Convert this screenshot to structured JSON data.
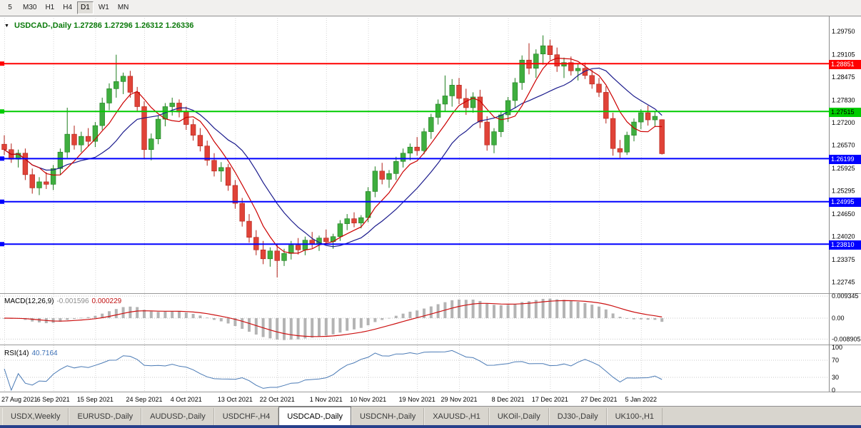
{
  "toolbar": {
    "timeframes": [
      "5",
      "M30",
      "H1",
      "H4",
      "D1",
      "W1",
      "MN"
    ],
    "active_timeframe": "D1"
  },
  "chart": {
    "dropdown_icon": "▼",
    "symbol_title": "USDCAD-,Daily",
    "ohlc_text": "1.27286 1.27296 1.26312 1.26336",
    "title_color": "#0b7a0b"
  },
  "price_axis": {
    "labels": [
      "1.29750",
      "1.29105",
      "1.28475",
      "1.27830",
      "1.27200",
      "1.26570",
      "1.25925",
      "1.25295",
      "1.24650",
      "1.24020",
      "1.23375",
      "1.22745"
    ]
  },
  "hlines": [
    {
      "price": 1.28851,
      "label": "1.28851",
      "color": "#ff0000",
      "text_color": "#ffffff"
    },
    {
      "price": 1.27515,
      "label": "1.27515",
      "color": "#00cc00",
      "text_color": "#000000"
    },
    {
      "price": 1.26199,
      "label": "1.26199",
      "color": "#0000ff",
      "text_color": "#ffffff"
    },
    {
      "price": 1.24995,
      "label": "1.24995",
      "color": "#0000ff",
      "text_color": "#ffffff"
    },
    {
      "price": 1.2381,
      "label": "1.23810",
      "color": "#0000ff",
      "text_color": "#ffffff"
    }
  ],
  "macd_panel": {
    "name": "MACD(12,26,9)",
    "value_main": "-0.001596",
    "value_signal": "0.000229",
    "axis_labels": [
      "0.009345",
      "0.00",
      "-0.008905"
    ],
    "axis_values": [
      0.009345,
      0,
      -0.008905
    ],
    "histogram_color": "#b4b4b4",
    "signal_color": "#cc1111",
    "params": [
      12,
      26,
      9
    ]
  },
  "rsi_panel": {
    "name": "RSI(14)",
    "value": "40.7164",
    "axis_labels": [
      "100",
      "70",
      "30",
      "0"
    ],
    "axis_values": [
      100,
      70,
      30,
      0
    ],
    "level_lines": [
      70,
      30
    ],
    "line_color": "#4a7ab5",
    "period": 14
  },
  "tabs": {
    "items": [
      "USDX,Weekly",
      "EURUSD-,Daily",
      "AUDUSD-,Daily",
      "USDCHF-,H4",
      "USDCAD-,Daily",
      "USDCNH-,Daily",
      "XAUUSD-,H1",
      "UKOil-,Daily",
      "DJ30-,Daily",
      "UK100-,H1"
    ],
    "active": "USDCAD-,Daily"
  },
  "chart_data": {
    "type": "candlestick",
    "symbol": "USDCAD",
    "timeframe": "Daily",
    "ylim": [
      1.225,
      1.3005
    ],
    "colors": {
      "bull_fill": "#3fae3f",
      "bull_stroke": "#1e7d1e",
      "bear_fill": "#e04338",
      "bear_stroke": "#b22017",
      "ma_fast": "#cc0000",
      "ma_slow": "#1a1a8c"
    },
    "ma_fast_period": 6,
    "ma_slow_period": 13,
    "x_labels": [
      {
        "i": 0,
        "label": "27 Aug 2021"
      },
      {
        "i": 7,
        "label": "6 Sep 2021"
      },
      {
        "i": 13,
        "label": "15 Sep 2021"
      },
      {
        "i": 20,
        "label": "24 Sep 2021"
      },
      {
        "i": 26,
        "label": "4 Oct 2021"
      },
      {
        "i": 33,
        "label": "13 Oct 2021"
      },
      {
        "i": 39,
        "label": "22 Oct 2021"
      },
      {
        "i": 46,
        "label": "1 Nov 2021"
      },
      {
        "i": 52,
        "label": "10 Nov 2021"
      },
      {
        "i": 59,
        "label": "19 Nov 2021"
      },
      {
        "i": 65,
        "label": "29 Nov 2021"
      },
      {
        "i": 72,
        "label": "8 Dec 2021"
      },
      {
        "i": 78,
        "label": "17 Dec 2021"
      },
      {
        "i": 85,
        "label": "27 Dec 2021"
      },
      {
        "i": 91,
        "label": "5 Jan 2022"
      }
    ],
    "candles": [
      [
        1.266,
        1.2685,
        1.263,
        1.2645
      ],
      [
        1.2645,
        1.2662,
        1.2608,
        1.2618
      ],
      [
        1.2618,
        1.2645,
        1.2595,
        1.2635
      ],
      [
        1.2635,
        1.2648,
        1.256,
        1.2575
      ],
      [
        1.2575,
        1.2592,
        1.2522,
        1.2538
      ],
      [
        1.2538,
        1.2568,
        1.2518,
        1.2555
      ],
      [
        1.2555,
        1.2582,
        1.2535,
        1.2548
      ],
      [
        1.2548,
        1.2602,
        1.2532,
        1.2592
      ],
      [
        1.2592,
        1.2648,
        1.2575,
        1.2638
      ],
      [
        1.2638,
        1.2762,
        1.2622,
        1.2688
      ],
      [
        1.2688,
        1.2712,
        1.2645,
        1.2658
      ],
      [
        1.2658,
        1.2695,
        1.2638,
        1.2682
      ],
      [
        1.2682,
        1.2705,
        1.2655,
        1.2668
      ],
      [
        1.2668,
        1.2722,
        1.2652,
        1.2712
      ],
      [
        1.2712,
        1.279,
        1.27,
        1.2775
      ],
      [
        1.2775,
        1.283,
        1.2755,
        1.2815
      ],
      [
        1.2815,
        1.291,
        1.279,
        1.2835
      ],
      [
        1.2835,
        1.286,
        1.28,
        1.285
      ],
      [
        1.285,
        1.2865,
        1.279,
        1.2805
      ],
      [
        1.2805,
        1.282,
        1.275,
        1.2765
      ],
      [
        1.2765,
        1.278,
        1.262,
        1.2645
      ],
      [
        1.2645,
        1.269,
        1.2615,
        1.2675
      ],
      [
        1.2675,
        1.274,
        1.266,
        1.273
      ],
      [
        1.273,
        1.2775,
        1.271,
        1.2765
      ],
      [
        1.2765,
        1.279,
        1.274,
        1.2775
      ],
      [
        1.2775,
        1.2785,
        1.2735,
        1.275
      ],
      [
        1.275,
        1.2765,
        1.27,
        1.2715
      ],
      [
        1.2715,
        1.273,
        1.267,
        1.2685
      ],
      [
        1.2685,
        1.2705,
        1.264,
        1.2655
      ],
      [
        1.2655,
        1.267,
        1.26,
        1.2615
      ],
      [
        1.2615,
        1.2635,
        1.257,
        1.2585
      ],
      [
        1.2585,
        1.261,
        1.2555,
        1.2595
      ],
      [
        1.2595,
        1.2605,
        1.253,
        1.2545
      ],
      [
        1.2545,
        1.256,
        1.248,
        1.2495
      ],
      [
        1.2495,
        1.251,
        1.243,
        1.2445
      ],
      [
        1.2445,
        1.2465,
        1.2385,
        1.24
      ],
      [
        1.24,
        1.242,
        1.235,
        1.2365
      ],
      [
        1.2365,
        1.239,
        1.2325,
        1.234
      ],
      [
        1.234,
        1.2372,
        1.2318,
        1.2362
      ],
      [
        1.2362,
        1.238,
        1.2288,
        1.2335
      ],
      [
        1.2335,
        1.2368,
        1.232,
        1.2355
      ],
      [
        1.2355,
        1.239,
        1.2338,
        1.2378
      ],
      [
        1.2378,
        1.2398,
        1.2352,
        1.2365
      ],
      [
        1.2365,
        1.2402,
        1.235,
        1.2392
      ],
      [
        1.2392,
        1.2415,
        1.237,
        1.2382
      ],
      [
        1.2382,
        1.2405,
        1.2362,
        1.2398
      ],
      [
        1.2398,
        1.2422,
        1.238,
        1.2388
      ],
      [
        1.2388,
        1.241,
        1.2368,
        1.2402
      ],
      [
        1.2402,
        1.2448,
        1.239,
        1.2438
      ],
      [
        1.2438,
        1.2465,
        1.242,
        1.2452
      ],
      [
        1.2452,
        1.247,
        1.2428,
        1.244
      ],
      [
        1.244,
        1.2462,
        1.2425,
        1.2455
      ],
      [
        1.2455,
        1.254,
        1.2442,
        1.2528
      ],
      [
        1.2528,
        1.2598,
        1.2512,
        1.2585
      ],
      [
        1.2585,
        1.2608,
        1.2548,
        1.2562
      ],
      [
        1.2562,
        1.2588,
        1.2538,
        1.2578
      ],
      [
        1.2578,
        1.2625,
        1.256,
        1.2612
      ],
      [
        1.2612,
        1.2648,
        1.2595,
        1.2635
      ],
      [
        1.2635,
        1.2662,
        1.2615,
        1.2652
      ],
      [
        1.2652,
        1.268,
        1.2628,
        1.2642
      ],
      [
        1.2642,
        1.2705,
        1.2632,
        1.2695
      ],
      [
        1.2695,
        1.2745,
        1.2675,
        1.2735
      ],
      [
        1.2735,
        1.2785,
        1.2715,
        1.2772
      ],
      [
        1.2772,
        1.2852,
        1.2752,
        1.2795
      ],
      [
        1.2795,
        1.2842,
        1.2765,
        1.2825
      ],
      [
        1.2825,
        1.2845,
        1.2772,
        1.2788
      ],
      [
        1.2788,
        1.2815,
        1.2742,
        1.2762
      ],
      [
        1.2762,
        1.2805,
        1.2748,
        1.2792
      ],
      [
        1.2792,
        1.2812,
        1.2705,
        1.2722
      ],
      [
        1.2722,
        1.2738,
        1.2642,
        1.2658
      ],
      [
        1.2658,
        1.2705,
        1.2635,
        1.2695
      ],
      [
        1.2695,
        1.2752,
        1.268,
        1.2742
      ],
      [
        1.2742,
        1.2792,
        1.2722,
        1.2782
      ],
      [
        1.2782,
        1.2845,
        1.2762,
        1.2832
      ],
      [
        1.2832,
        1.2908,
        1.2812,
        1.2895
      ],
      [
        1.2895,
        1.2942,
        1.2855,
        1.2872
      ],
      [
        1.2872,
        1.2925,
        1.2845,
        1.2912
      ],
      [
        1.2912,
        1.2964,
        1.2882,
        1.2935
      ],
      [
        1.2935,
        1.2952,
        1.2895,
        1.291
      ],
      [
        1.291,
        1.293,
        1.2862,
        1.2878
      ],
      [
        1.2878,
        1.2902,
        1.2845,
        1.2888
      ],
      [
        1.2888,
        1.2905,
        1.2852,
        1.2865
      ],
      [
        1.2865,
        1.2885,
        1.2838,
        1.2872
      ],
      [
        1.2872,
        1.2888,
        1.2842,
        1.2852
      ],
      [
        1.2852,
        1.2868,
        1.2815,
        1.2828
      ],
      [
        1.2828,
        1.2845,
        1.2792,
        1.2805
      ],
      [
        1.2805,
        1.2822,
        1.2718,
        1.2732
      ],
      [
        1.2732,
        1.2748,
        1.2628,
        1.2648
      ],
      [
        1.2648,
        1.2672,
        1.2622,
        1.2638
      ],
      [
        1.2638,
        1.2695,
        1.263,
        1.2685
      ],
      [
        1.2685,
        1.2732,
        1.2668,
        1.2722
      ],
      [
        1.2722,
        1.2758,
        1.2702,
        1.2748
      ],
      [
        1.2748,
        1.2768,
        1.2712,
        1.2728
      ],
      [
        1.2728,
        1.2752,
        1.2708,
        1.2738
      ],
      [
        1.27286,
        1.27296,
        1.26312,
        1.26336
      ]
    ]
  }
}
